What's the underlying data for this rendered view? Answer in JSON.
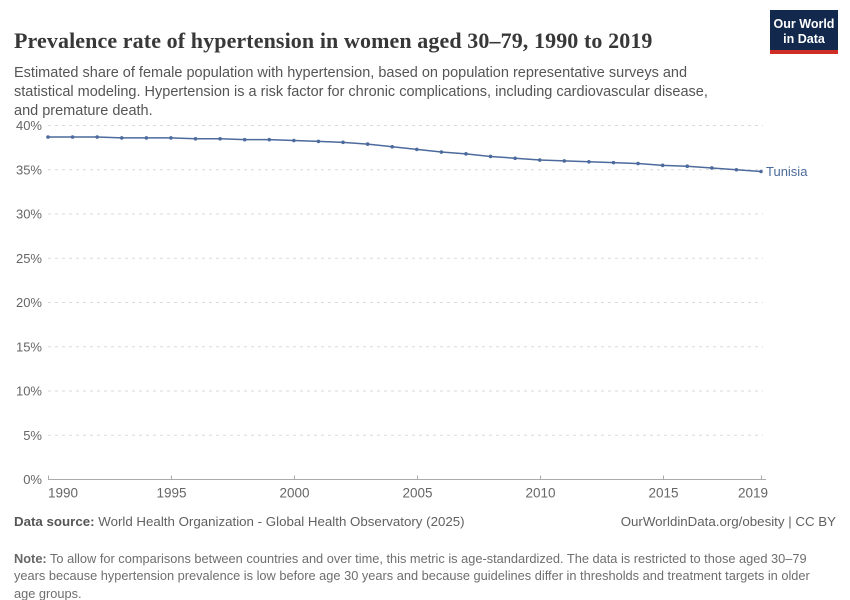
{
  "header": {
    "title": "Prevalence rate of hypertension in women aged 30–79, 1990 to 2019",
    "subtitle": "Estimated share of female population with hypertension, based on population representative surveys and statistical modeling. Hypertension is a risk factor for chronic complications, including cardiovascular disease, and premature death.",
    "logo": {
      "line1": "Our World",
      "line2": "in Data",
      "bg_color": "#12294d",
      "stripe_color": "#cf2e27"
    }
  },
  "chart_data": {
    "type": "line",
    "title": "Prevalence rate of hypertension in women aged 30–79, 1990 to 2019",
    "x": [
      1990,
      1991,
      1992,
      1993,
      1994,
      1995,
      1996,
      1997,
      1998,
      1999,
      2000,
      2001,
      2002,
      2003,
      2004,
      2005,
      2006,
      2007,
      2008,
      2009,
      2010,
      2011,
      2012,
      2013,
      2014,
      2015,
      2016,
      2017,
      2018,
      2019
    ],
    "series": [
      {
        "name": "Tunisia",
        "color": "#4C6A9C",
        "values": [
          38.7,
          38.7,
          38.7,
          38.6,
          38.6,
          38.6,
          38.5,
          38.5,
          38.4,
          38.4,
          38.3,
          38.2,
          38.1,
          37.9,
          37.6,
          37.3,
          37.0,
          36.8,
          36.5,
          36.3,
          36.1,
          36.0,
          35.9,
          35.8,
          35.7,
          35.5,
          35.4,
          35.2,
          35.0,
          34.8
        ]
      }
    ],
    "xlabel": "",
    "ylabel": "",
    "ylim": [
      0,
      40
    ],
    "yticks": [
      0,
      5,
      10,
      15,
      20,
      25,
      30,
      35,
      40
    ],
    "ytick_suffix": "%",
    "xticks": [
      1990,
      1995,
      2000,
      2005,
      2010,
      2015,
      2019
    ],
    "grid": "horizontal-dashed",
    "legend_position": "end-of-line-label",
    "colors": {
      "gridline": "#dadada",
      "axis": "#ababab",
      "tick_label": "#666666"
    }
  },
  "footer": {
    "datasource_label": "Data source:",
    "datasource_text": " World Health Organization - Global Health Observatory (2025)",
    "attribution": "OurWorldinData.org/obesity | CC BY",
    "note_label": "Note:",
    "note_text": " To allow for comparisons between countries and over time, this metric is age-standardized. The data is restricted to those aged 30–79 years because hypertension prevalence is low before age 30 years and because guidelines differ in thresholds and treatment targets in older age groups."
  }
}
